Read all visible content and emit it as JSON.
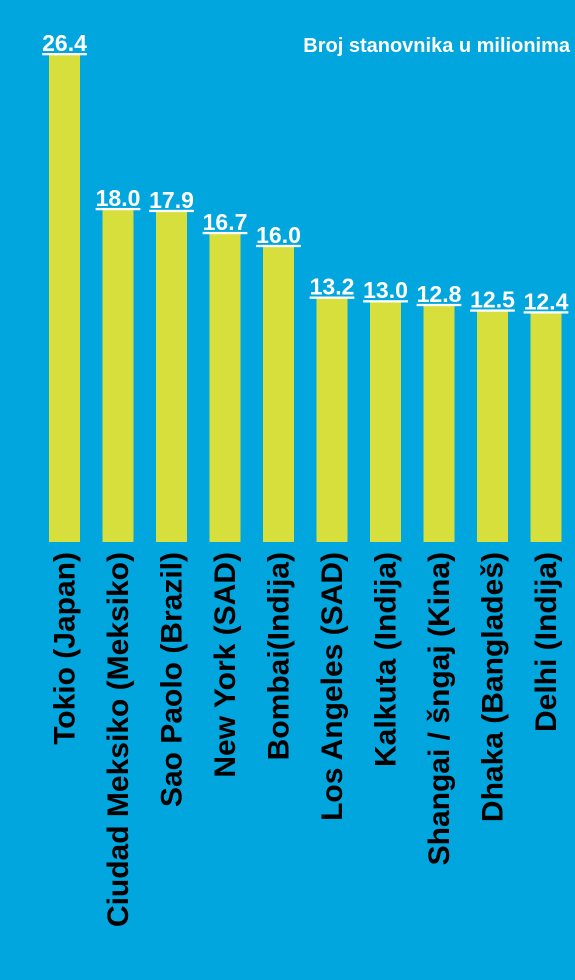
{
  "chart_data": {
    "type": "bar",
    "title": "Broj stanovnika u milionima",
    "categories": [
      "Tokio (Japan)",
      "Ciudad Meksiko (Meksiko)",
      "Sao Paolo (Brazil)",
      "New York (SAD)",
      "Bombai(Indija)",
      "Los Angeles (SAD)",
      "Kalkuta (Indija)",
      "Shangai / šngaj (Kina)",
      "Dhaka (Bangladeš)",
      "Delhi (Indija)"
    ],
    "values": [
      26.4,
      18.0,
      17.9,
      16.7,
      16.0,
      13.2,
      13.0,
      12.8,
      12.5,
      12.4
    ],
    "value_labels": [
      "26.4",
      "18.0",
      "17.9",
      "16.7",
      "16.0",
      "13.2",
      "13.0",
      "12.8",
      "12.5",
      "12.4"
    ],
    "ylim": [
      0,
      26.4
    ],
    "grid": false,
    "legend": "none",
    "colors": {
      "background": "#00a6dd",
      "bar": "#d7df3c",
      "value_text": "#ffffff",
      "category_text": "#000000",
      "title_text": "#ffffff"
    }
  }
}
